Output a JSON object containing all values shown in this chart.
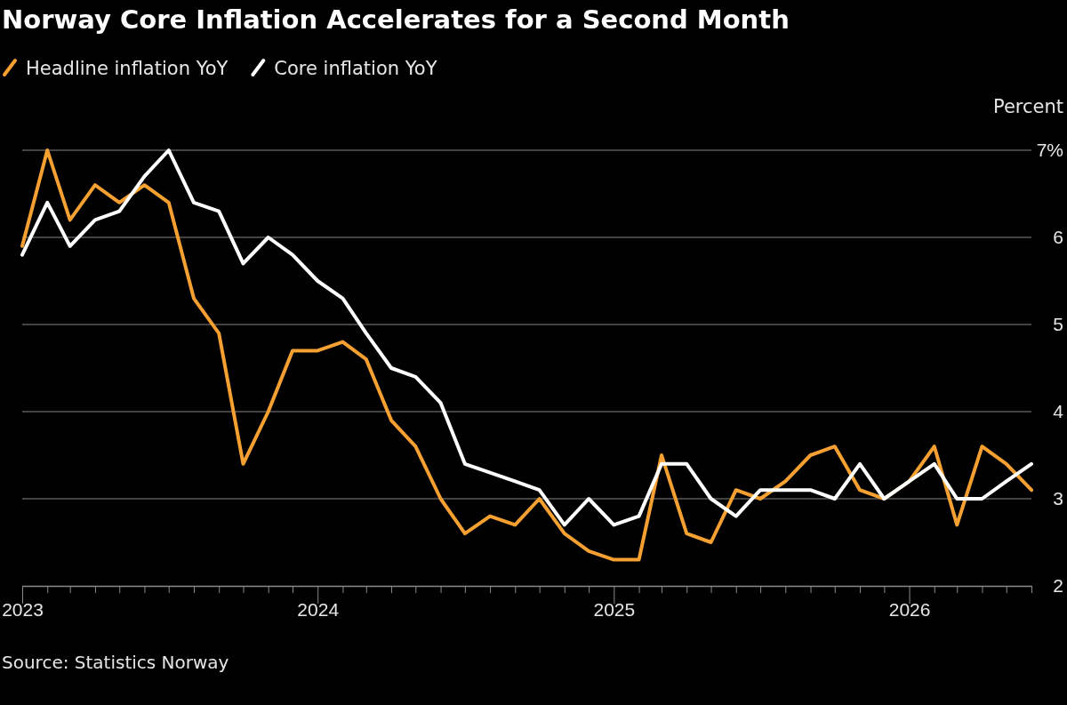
{
  "chart_data": {
    "type": "line",
    "title": "Norway Core Inflation Accelerates for a Second Month",
    "ylabel": "Percent",
    "annotations": [
      "Source: Statistics Norway"
    ],
    "x": [
      "2023-01",
      "2023-02",
      "2023-03",
      "2023-04",
      "2023-05",
      "2023-06",
      "2023-07",
      "2023-08",
      "2023-09",
      "2023-10",
      "2023-11",
      "2023-12",
      "2024-01",
      "2024-02",
      "2024-03",
      "2024-04",
      "2024-05",
      "2024-06",
      "2024-07",
      "2024-08",
      "2024-09",
      "2024-10",
      "2024-11",
      "2024-12",
      "2025-01",
      "2025-02",
      "2025-03",
      "2025-04",
      "2025-05",
      "2025-06",
      "2025-07",
      "2025-08",
      "2025-09",
      "2025-10",
      "2025-11",
      "2025-12",
      "2026-01",
      "2026-02",
      "2026-03",
      "2026-04",
      "2026-05",
      "2026-06"
    ],
    "series": [
      {
        "name": "Headline inflation YoY",
        "color": "#f5a031",
        "values": [
          5.9,
          7.0,
          6.2,
          6.6,
          6.4,
          6.6,
          6.4,
          5.3,
          4.9,
          3.4,
          4.0,
          4.7,
          4.7,
          4.8,
          4.6,
          3.9,
          3.6,
          3.0,
          2.6,
          2.8,
          2.7,
          3.0,
          2.6,
          2.4,
          2.3,
          2.3,
          3.5,
          2.6,
          2.5,
          3.1,
          3.0,
          3.2,
          3.5,
          3.6,
          3.1,
          3.0,
          3.2,
          3.6,
          2.7,
          3.6,
          3.4,
          3.1
        ]
      },
      {
        "name": "Core inflation YoY",
        "color": "#ffffff",
        "values": [
          5.8,
          6.4,
          5.9,
          6.2,
          6.3,
          6.7,
          7.0,
          6.4,
          6.3,
          5.7,
          6.0,
          5.8,
          5.5,
          5.3,
          4.9,
          4.5,
          4.4,
          4.1,
          3.4,
          3.3,
          3.2,
          3.1,
          2.7,
          3.0,
          2.7,
          2.8,
          3.4,
          3.4,
          3.0,
          2.8,
          3.1,
          3.1,
          3.1,
          3.0,
          3.4,
          3.0,
          3.2,
          3.4,
          3.0,
          3.0,
          3.2,
          3.4
        ]
      }
    ],
    "xlim": [
      "2023-01",
      "2026-06"
    ],
    "xticks": [
      {
        "value": "2023-01",
        "label": "2023"
      },
      {
        "value": "2023-02",
        "label": null
      },
      {
        "value": "2023-03",
        "label": null
      },
      {
        "value": "2023-04",
        "label": null
      },
      {
        "value": "2023-05",
        "label": null
      },
      {
        "value": "2023-06",
        "label": null
      },
      {
        "value": "2023-07",
        "label": null
      },
      {
        "value": "2023-08",
        "label": null
      },
      {
        "value": "2023-09",
        "label": null
      },
      {
        "value": "2023-10",
        "label": null
      },
      {
        "value": "2023-11",
        "label": null
      },
      {
        "value": "2023-12",
        "label": null
      },
      {
        "value": "2024-01",
        "label": "2024"
      },
      {
        "value": "2024-02",
        "label": null
      },
      {
        "value": "2024-03",
        "label": null
      },
      {
        "value": "2024-04",
        "label": null
      },
      {
        "value": "2024-05",
        "label": null
      },
      {
        "value": "2024-06",
        "label": null
      },
      {
        "value": "2024-07",
        "label": null
      },
      {
        "value": "2024-08",
        "label": null
      },
      {
        "value": "2024-09",
        "label": null
      },
      {
        "value": "2024-10",
        "label": null
      },
      {
        "value": "2024-11",
        "label": null
      },
      {
        "value": "2024-12",
        "label": null
      },
      {
        "value": "2025-01",
        "label": "2025"
      },
      {
        "value": "2025-02",
        "label": null
      },
      {
        "value": "2025-03",
        "label": null
      },
      {
        "value": "2025-04",
        "label": null
      },
      {
        "value": "2025-05",
        "label": null
      },
      {
        "value": "2025-06",
        "label": null
      },
      {
        "value": "2025-07",
        "label": null
      },
      {
        "value": "2025-08",
        "label": null
      },
      {
        "value": "2025-09",
        "label": null
      },
      {
        "value": "2025-10",
        "label": null
      },
      {
        "value": "2025-11",
        "label": null
      },
      {
        "value": "2025-12",
        "label": null
      },
      {
        "value": "2026-01",
        "label": "2026"
      },
      {
        "value": "2026-02",
        "label": null
      },
      {
        "value": "2026-03",
        "label": null
      },
      {
        "value": "2026-04",
        "label": null
      },
      {
        "value": "2026-05",
        "label": null
      },
      {
        "value": "2026-06",
        "label": null
      }
    ],
    "ylim": [
      2,
      7
    ],
    "yticks": [
      2,
      3,
      4,
      5,
      6,
      {
        "value": 7,
        "label": "7%"
      }
    ],
    "grid": "y",
    "legend": "top left"
  }
}
